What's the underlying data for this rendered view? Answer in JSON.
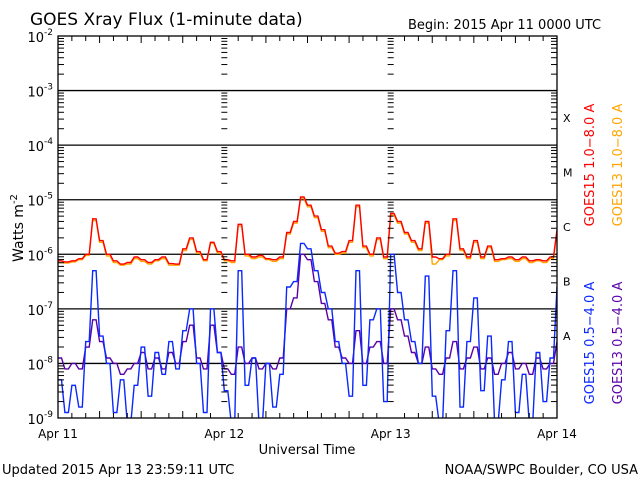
{
  "chart_data": {
    "type": "line",
    "title": "GOES Xray Flux (1-minute data)",
    "begin_label": "Begin:  2015 Apr 11 0000 UTC",
    "xlabel": "Universal Time",
    "ylabel_base": "Watts m",
    "ylabel_exp": "-2",
    "updated_label": "Updated 2015 Apr 13 23:59:11 UTC",
    "credit_label": "NOAA/SWPC Boulder, CO USA",
    "x_unit": "hours since 2015 Apr 11 0000 UTC",
    "xlim": [
      0,
      72
    ],
    "ylim_log10": [
      -9,
      -2
    ],
    "x_ticks": [
      {
        "hour": 0,
        "label": "Apr 11"
      },
      {
        "hour": 24,
        "label": "Apr 12"
      },
      {
        "hour": 48,
        "label": "Apr 13"
      },
      {
        "hour": 72,
        "label": "Apr 14"
      }
    ],
    "y_ticks": [
      {
        "log": -2,
        "base": "10",
        "exp": "-2"
      },
      {
        "log": -3,
        "base": "10",
        "exp": "-3"
      },
      {
        "log": -4,
        "base": "10",
        "exp": "-4"
      },
      {
        "log": -5,
        "base": "10",
        "exp": "-5"
      },
      {
        "log": -6,
        "base": "10",
        "exp": "-6"
      },
      {
        "log": -7,
        "base": "10",
        "exp": "-7"
      },
      {
        "log": -8,
        "base": "10",
        "exp": "-8"
      },
      {
        "log": -9,
        "base": "10",
        "exp": "-9"
      }
    ],
    "flare_classes": [
      {
        "label": "X",
        "log": -3.5
      },
      {
        "label": "M",
        "log": -4.5
      },
      {
        "label": "C",
        "log": -5.5
      },
      {
        "label": "B",
        "log": -6.5
      },
      {
        "label": "A",
        "log": -7.5
      }
    ],
    "grid": true,
    "legend_position": "right (rotated)",
    "series": [
      {
        "name": "GOES13 1.0-8.0 A",
        "color": "#ffa500",
        "values_log10": [
          -6.15,
          -6.16,
          -6.14,
          -6.1,
          -6.02,
          -5.38,
          -5.78,
          -6.03,
          -6.15,
          -6.2,
          -6.18,
          -6.08,
          -6.13,
          -6.18,
          -6.12,
          -6.08,
          -6.2,
          -6.2,
          -5.93,
          -5.73,
          -5.98,
          -6.12,
          -5.8,
          -5.98,
          -6.12,
          -6.15,
          -5.48,
          -6.03,
          -6.08,
          -6.05,
          -6.1,
          -6.13,
          -6.08,
          -5.63,
          -5.43,
          -4.98,
          -5.13,
          -5.33,
          -5.58,
          -5.88,
          -6.0,
          -5.98,
          -5.78,
          -5.13,
          -5.88,
          -6.03,
          -5.73,
          -6.08,
          -5.28,
          -5.43,
          -5.63,
          -5.78,
          -5.93,
          -5.43,
          -6.18,
          -6.1,
          -6.03,
          -5.38,
          -5.93,
          -6.08,
          -5.78,
          -6.08,
          -5.88,
          -6.13,
          -6.1,
          -6.08,
          -6.13,
          -6.08,
          -6.15,
          -6.12,
          -6.15,
          -6.08,
          -5.6
        ]
      },
      {
        "name": "GOES15 1.0-8.0 A",
        "color": "#ff0000",
        "values_log10": [
          -6.12,
          -6.14,
          -6.12,
          -6.08,
          -6.0,
          -5.35,
          -5.75,
          -6.0,
          -6.12,
          -6.18,
          -6.15,
          -6.05,
          -6.1,
          -6.15,
          -6.1,
          -6.05,
          -6.17,
          -6.18,
          -5.9,
          -5.7,
          -5.95,
          -6.1,
          -5.78,
          -5.95,
          -6.1,
          -6.12,
          -5.45,
          -6.0,
          -6.05,
          -6.02,
          -6.08,
          -6.1,
          -6.05,
          -5.6,
          -5.4,
          -4.95,
          -5.1,
          -5.3,
          -5.55,
          -5.85,
          -5.98,
          -5.95,
          -5.75,
          -5.1,
          -5.85,
          -6.0,
          -5.7,
          -6.05,
          -5.25,
          -5.4,
          -5.6,
          -5.75,
          -5.9,
          -5.4,
          -6.05,
          -6.08,
          -6.0,
          -5.35,
          -5.9,
          -6.05,
          -5.75,
          -6.05,
          -5.85,
          -6.1,
          -6.08,
          -6.05,
          -6.1,
          -6.05,
          -6.12,
          -6.1,
          -6.12,
          -6.05,
          -5.55
        ]
      },
      {
        "name": "GOES13 0.5-4.0 A",
        "color": "#5a00a8",
        "values_log10": [
          -7.9,
          -8.1,
          -8.0,
          -8.1,
          -7.7,
          -7.2,
          -7.6,
          -7.9,
          -8.0,
          -8.2,
          -8.1,
          -8.0,
          -7.8,
          -8.1,
          -7.9,
          -8.1,
          -7.8,
          -8.0,
          -7.6,
          -7.3,
          -7.9,
          -8.1,
          -7.3,
          -7.8,
          -8.1,
          -8.2,
          -7.7,
          -8.0,
          -7.9,
          -8.1,
          -8.0,
          -8.1,
          -7.9,
          -7.0,
          -6.8,
          -6.0,
          -6.1,
          -6.5,
          -6.9,
          -7.2,
          -7.7,
          -7.9,
          -8.0,
          -7.4,
          -8.0,
          -7.7,
          -7.6,
          -8.0,
          -7.0,
          -7.2,
          -7.5,
          -7.8,
          -8.0,
          -7.7,
          -8.1,
          -8.2,
          -7.9,
          -7.6,
          -8.1,
          -7.9,
          -7.7,
          -8.1,
          -7.9,
          -8.2,
          -8.0,
          -7.8,
          -8.1,
          -8.0,
          -8.2,
          -7.9,
          -8.1,
          -8.0,
          -7.6
        ]
      },
      {
        "name": "GOES15 0.5-4.0 A",
        "color": "#0a28ff",
        "values_log10": [
          -8.3,
          -8.9,
          -8.4,
          -8.8,
          -7.6,
          -6.3,
          -7.5,
          -8.0,
          -8.9,
          -8.3,
          -9.1,
          -8.4,
          -7.7,
          -8.6,
          -7.8,
          -8.2,
          -7.6,
          -8.1,
          -7.4,
          -7.0,
          -8.0,
          -8.9,
          -7.0,
          -7.8,
          -8.5,
          -9.1,
          -6.3,
          -8.4,
          -7.9,
          -9.1,
          -8.0,
          -8.8,
          -8.2,
          -6.6,
          -6.5,
          -5.8,
          -5.9,
          -6.3,
          -6.7,
          -7.0,
          -7.6,
          -8.0,
          -8.6,
          -6.3,
          -8.4,
          -7.2,
          -7.0,
          -8.7,
          -6.0,
          -6.7,
          -7.2,
          -7.6,
          -8.0,
          -6.4,
          -8.6,
          -9.1,
          -7.4,
          -6.3,
          -8.8,
          -7.6,
          -6.8,
          -8.5,
          -7.5,
          -9.1,
          -8.3,
          -7.6,
          -8.9,
          -8.2,
          -9.1,
          -7.8,
          -8.7,
          -7.9,
          -6.6
        ]
      }
    ],
    "legend": [
      {
        "label": "GOES15 1.0−8.0 A",
        "color": "#ff0000"
      },
      {
        "label": "GOES13 1.0−8.0 A",
        "color": "#ffa500"
      },
      {
        "label": "GOES15 0.5−4.0 A",
        "color": "#0a28ff"
      },
      {
        "label": "GOES13 0.5−4.0 A",
        "color": "#5a00a8"
      }
    ]
  }
}
